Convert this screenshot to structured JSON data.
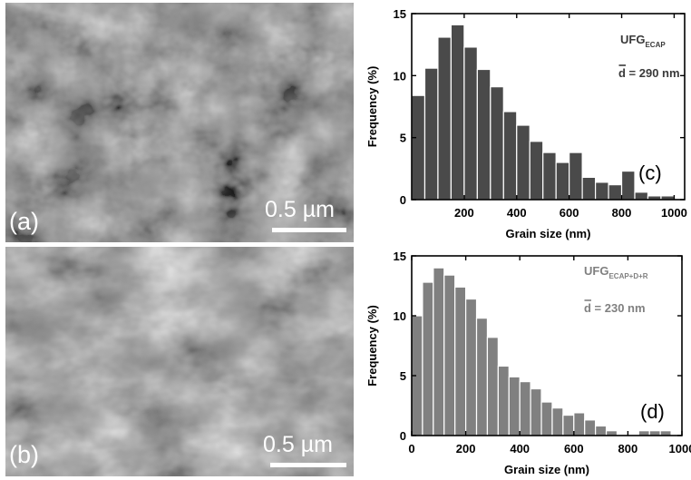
{
  "micrographs": [
    {
      "label": "(a)",
      "scale_label": "0.5 µm"
    },
    {
      "label": "(b)",
      "scale_label": "0.5 µm"
    }
  ],
  "chart_data": [
    {
      "type": "bar",
      "panel_label": "(c)",
      "sample_label": "UFG",
      "sample_subscript": "ECAP",
      "mean_label": "d = 290 nm",
      "xlabel": "Grain size (nm)",
      "ylabel": "Frequency (%)",
      "xlim": [
        0,
        1040
      ],
      "ylim": [
        0,
        15
      ],
      "xticks": [
        200,
        400,
        600,
        800,
        1000
      ],
      "yticks": [
        0,
        5,
        10,
        15
      ],
      "bin_width": 50,
      "bin_centers": [
        25,
        75,
        125,
        175,
        225,
        275,
        325,
        375,
        425,
        475,
        525,
        575,
        625,
        675,
        725,
        775,
        825,
        875,
        925,
        975
      ],
      "values": [
        8.4,
        10.6,
        13.1,
        14.1,
        12.3,
        10.5,
        9.1,
        7.1,
        6.0,
        4.7,
        3.8,
        3.0,
        3.8,
        1.8,
        1.4,
        1.2,
        2.3,
        0.6,
        0.3,
        0.3
      ],
      "bar_color": "#4a4a4a"
    },
    {
      "type": "bar",
      "panel_label": "(d)",
      "sample_label": "UFG",
      "sample_subscript": "ECAP+D+R",
      "mean_label": "d = 230 nm",
      "xlabel": "Grain size (nm)",
      "ylabel": "Frequency (%)",
      "xlim": [
        0,
        1000
      ],
      "ylim": [
        0,
        15
      ],
      "xticks": [
        0,
        200,
        400,
        600,
        800,
        1000
      ],
      "yticks": [
        0,
        5,
        10,
        15
      ],
      "bin_width": 40,
      "bin_centers": [
        20,
        60,
        100,
        140,
        180,
        220,
        260,
        300,
        340,
        380,
        420,
        460,
        500,
        540,
        580,
        620,
        660,
        700,
        740,
        780,
        820,
        860,
        900,
        940
      ],
      "values": [
        10.0,
        12.8,
        14.0,
        13.4,
        12.4,
        11.4,
        9.8,
        8.2,
        5.8,
        4.9,
        4.5,
        3.9,
        2.8,
        2.3,
        1.7,
        1.9,
        1.3,
        0.8,
        0.4,
        0.0,
        0.0,
        0.4,
        0.4,
        0.4
      ],
      "bar_color": "#808080"
    }
  ]
}
